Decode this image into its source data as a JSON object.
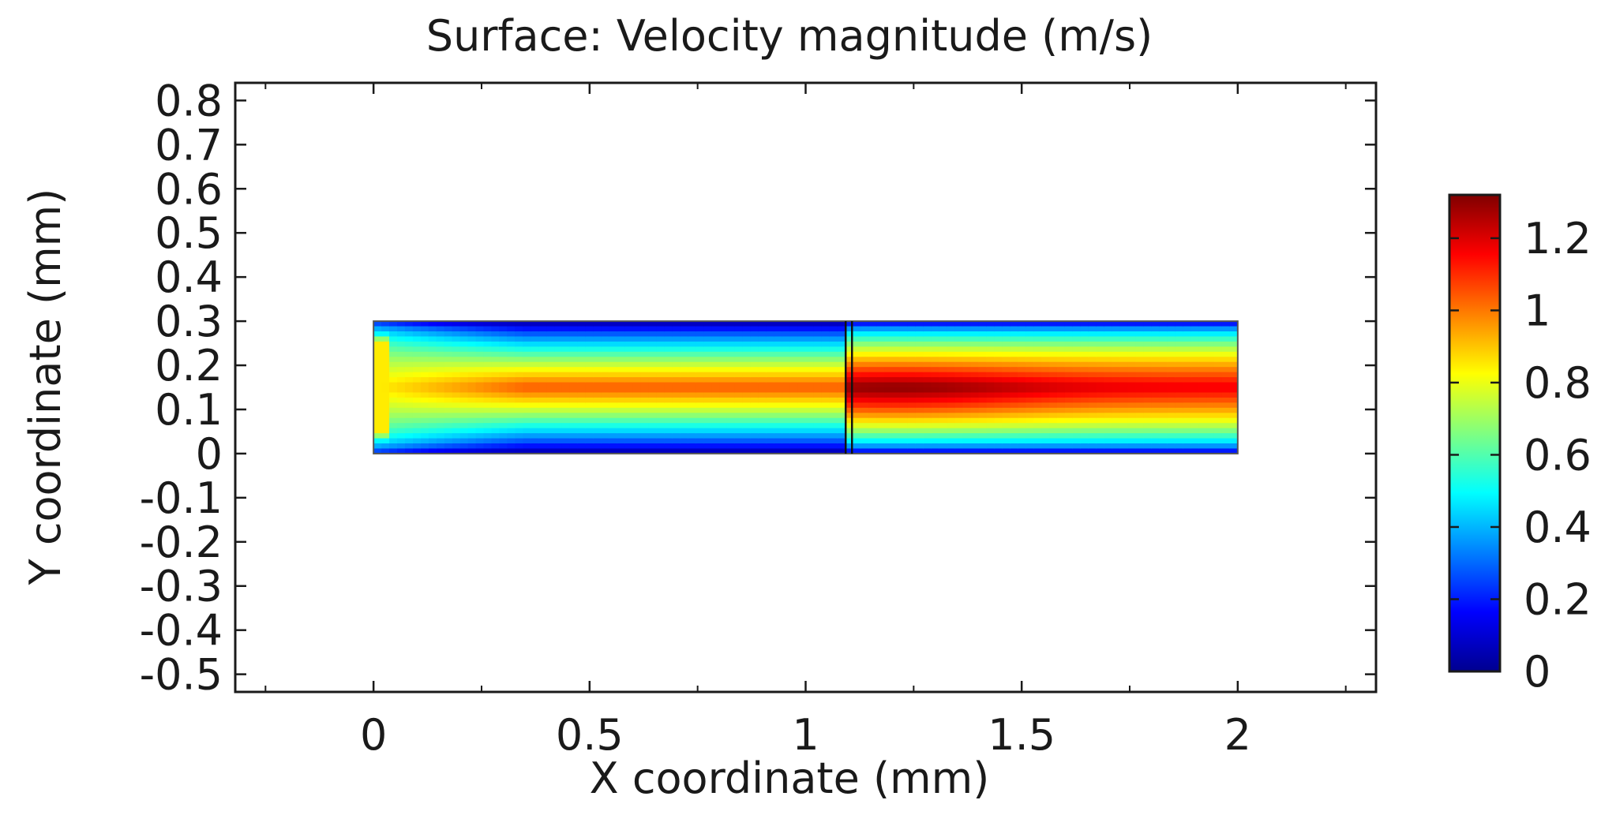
{
  "chart_data": {
    "type": "heatmap",
    "title": "Surface: Velocity magnitude (m/s)",
    "xlabel": "X coordinate (mm)",
    "ylabel": "Y coordinate (mm)",
    "xlim": [
      -0.32,
      2.32
    ],
    "ylim": [
      -0.54,
      0.84
    ],
    "x_ticks": [
      0,
      0.5,
      1,
      1.5,
      2
    ],
    "x_tick_labels": [
      "0",
      "0.5",
      "1",
      "1.5",
      "2"
    ],
    "y_ticks": [
      0.8,
      0.7,
      0.6,
      0.5,
      0.4,
      0.3,
      0.2,
      0.1,
      0,
      -0.1,
      -0.2,
      -0.3,
      -0.4,
      -0.5
    ],
    "y_tick_labels": [
      "0.8",
      "0.7",
      "0.6",
      "0.5",
      "0.4",
      "0.3",
      "0.2",
      "0.1",
      "0",
      "-0.1",
      "-0.2",
      "-0.3",
      "-0.4",
      "-0.5"
    ],
    "domain": {
      "x": [
        0,
        2
      ],
      "y": [
        0,
        0.3
      ]
    },
    "divider_x": 1.1,
    "colorbar": {
      "min": 0,
      "max": 1.32,
      "ticks": [
        0,
        0.2,
        0.4,
        0.6,
        0.8,
        1,
        1.2
      ],
      "tick_labels": [
        "0",
        "0.2",
        "0.4",
        "0.6",
        "0.8",
        "1",
        "1.2"
      ],
      "colormap": [
        "#00008f",
        "#0000ff",
        "#0080ff",
        "#00ffff",
        "#80ff80",
        "#ffff00",
        "#ff8000",
        "#ff0000",
        "#800000"
      ]
    },
    "field": {
      "core_velocity_left": 1.05,
      "core_velocity_right": 1.18,
      "peak_velocity": 1.32,
      "peak_location": {
        "x": 1.2,
        "y": 0.13
      },
      "inlet_velocity": 0.85,
      "wall_velocity": 0
    }
  }
}
